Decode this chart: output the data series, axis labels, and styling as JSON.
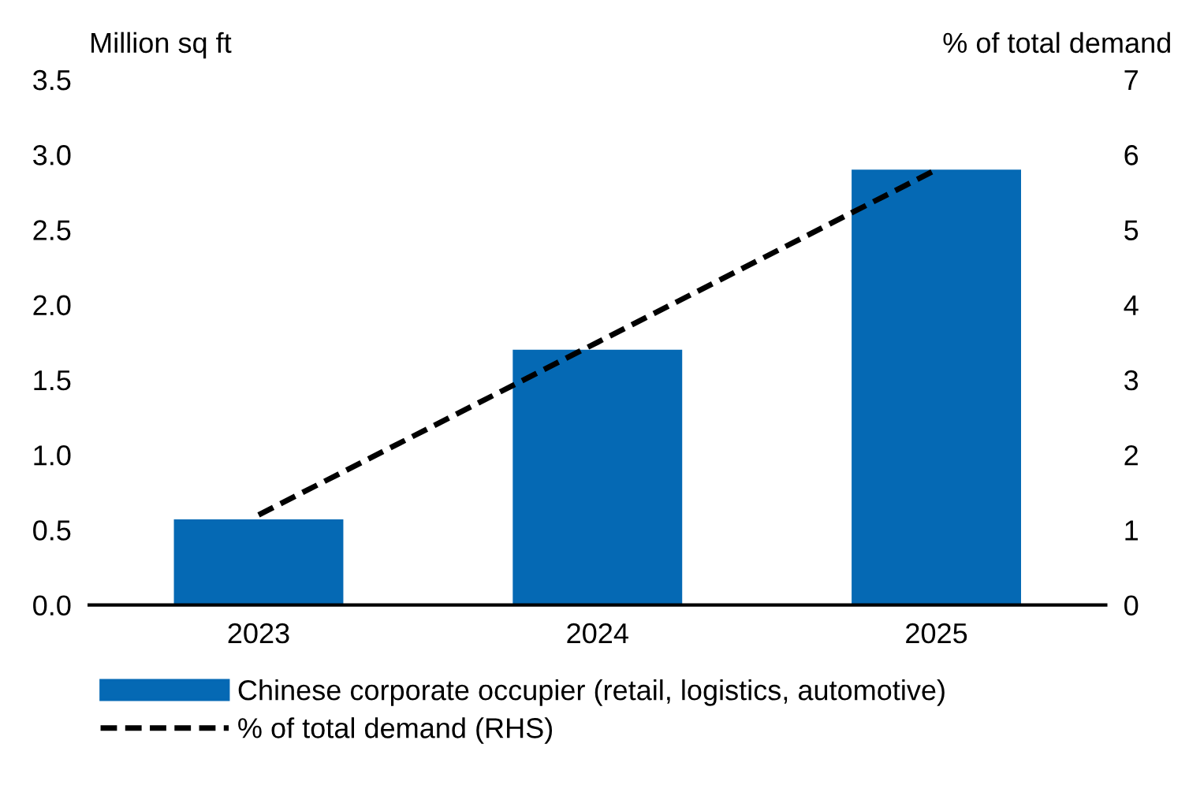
{
  "chart_data": {
    "type": "bar",
    "categories": [
      "2023",
      "2024",
      "2025"
    ],
    "ylabel": "Million sq ft",
    "y2label": "% of total demand",
    "series": [
      {
        "name": "Chinese corporate occupier (retail, logistics, automotive)",
        "color": "#0569b4",
        "values": [
          0.57,
          1.7,
          2.9
        ]
      },
      {
        "name": "% of total demand (RHS)",
        "type": "line",
        "axis": "y2",
        "color": "#000000",
        "line_style": "dashed",
        "values": [
          1.2,
          3.5,
          5.8
        ]
      }
    ],
    "ylim": [
      0,
      3.5
    ],
    "yticks": [
      {
        "value": 0,
        "label": "0.0"
      },
      {
        "value": 0.5,
        "label": "0.5"
      },
      {
        "value": 1,
        "label": "1.0"
      },
      {
        "value": 1.5,
        "label": "1.5"
      },
      {
        "value": 2,
        "label": "2.0"
      },
      {
        "value": 2.5,
        "label": "2.5"
      },
      {
        "value": 3,
        "label": "3.0"
      },
      {
        "value": 3.5,
        "label": "3.5"
      }
    ],
    "y2lim": [
      0,
      7
    ],
    "y2ticks": [
      0,
      1,
      2,
      3,
      4,
      5,
      6,
      7
    ],
    "grid": false,
    "legend": "bottom"
  }
}
